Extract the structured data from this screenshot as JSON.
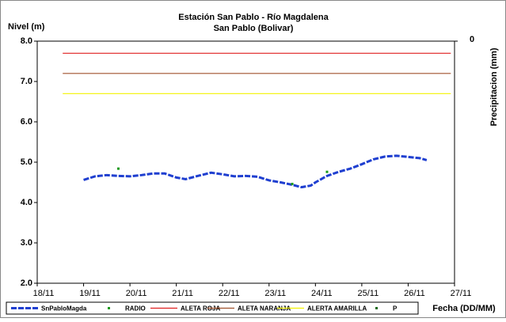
{
  "chart_data": {
    "type": "line",
    "title": "Estación San Pablo - Río Magdalena",
    "subtitle": "San Pablo (Bolivar)",
    "ylabel": "Nivel (m)",
    "xlabel": "Fecha (DD/MM)",
    "y2label": "Precipitacion (mm)",
    "xlim": [
      18,
      27
    ],
    "xticks": [
      {
        "value": 18,
        "label": "18/11"
      },
      {
        "value": 19,
        "label": "19/11"
      },
      {
        "value": 20,
        "label": "20/11"
      },
      {
        "value": 21,
        "label": "21/11"
      },
      {
        "value": 22,
        "label": "22/11"
      },
      {
        "value": 23,
        "label": "23/11"
      },
      {
        "value": 24,
        "label": "24/11"
      },
      {
        "value": 25,
        "label": "25/11"
      },
      {
        "value": 26,
        "label": "26/11"
      },
      {
        "value": 27,
        "label": "27/11"
      }
    ],
    "ylim": [
      2,
      8
    ],
    "yticks": [
      {
        "value": 2,
        "label": "2.0"
      },
      {
        "value": 3,
        "label": "3.0"
      },
      {
        "value": 4,
        "label": "4.0"
      },
      {
        "value": 5,
        "label": "5.0"
      },
      {
        "value": 6,
        "label": "6.0"
      },
      {
        "value": 7,
        "label": "7.0"
      },
      {
        "value": 8,
        "label": "8.0"
      }
    ],
    "y2ticks": [
      0
    ],
    "series": [
      {
        "name": "SnPabloMagda",
        "color": "#1f3fd0",
        "style": "dashed",
        "x": [
          19.0,
          19.25,
          19.5,
          19.75,
          20.0,
          20.25,
          20.5,
          20.75,
          21.0,
          21.2,
          21.5,
          21.75,
          22.0,
          22.25,
          22.5,
          22.75,
          23.0,
          23.25,
          23.5,
          23.7,
          23.9,
          24.0,
          24.25,
          24.5,
          24.75,
          25.0,
          25.25,
          25.5,
          25.75,
          26.0,
          26.25,
          26.4
        ],
        "values": [
          4.56,
          4.65,
          4.68,
          4.66,
          4.65,
          4.68,
          4.72,
          4.72,
          4.62,
          4.58,
          4.67,
          4.74,
          4.7,
          4.65,
          4.66,
          4.64,
          4.55,
          4.5,
          4.44,
          4.38,
          4.42,
          4.5,
          4.66,
          4.76,
          4.84,
          4.95,
          5.07,
          5.14,
          5.16,
          5.13,
          5.1,
          5.05
        ]
      },
      {
        "name": "RADIO",
        "color": "#1a9a1a",
        "style": "points",
        "x": [
          19.75,
          23.5,
          24.25
        ],
        "values": [
          4.84,
          4.46,
          4.76
        ]
      },
      {
        "name": "ALETA ROJA",
        "color": "#e02020",
        "style": "solid",
        "x": [
          18.55,
          26.92
        ],
        "values": [
          7.7,
          7.7
        ]
      },
      {
        "name": "ALETA NARANJA",
        "color": "#a0522d",
        "style": "solid",
        "x": [
          18.55,
          26.92
        ],
        "values": [
          7.2,
          7.2
        ]
      },
      {
        "name": "ALERTA AMARILLA",
        "color": "#f2f200",
        "style": "solid",
        "x": [
          18.55,
          26.92
        ],
        "values": [
          6.7,
          6.7
        ]
      },
      {
        "name": "P",
        "color": "#1a6a1a",
        "style": "points",
        "x": [],
        "values": []
      }
    ]
  }
}
